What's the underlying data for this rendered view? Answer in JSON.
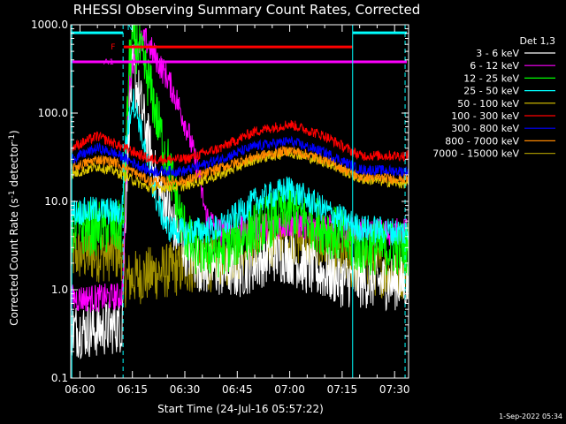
{
  "chart_data": {
    "type": "line",
    "title": "RHESSI Observing Summary Count Rates, Corrected",
    "xlabel": "Start Time (24-Jul-16 05:57:22)",
    "ylabel": "Corrected Count Rate (s⁻¹ detector⁻¹)",
    "ylabel_main": "Corrected Count Rate (s",
    "ylabel_sup1": "-1",
    "ylabel_mid": " detector",
    "ylabel_sup2": "-1",
    "ylabel_end": ")",
    "yscale": "log",
    "xlim": [
      "05:57:22",
      "07:34:00"
    ],
    "ylim": [
      0.1,
      1000
    ],
    "x_ticks": [
      "06:00",
      "06:15",
      "06:30",
      "06:45",
      "07:00",
      "07:15",
      "07:30"
    ],
    "y_ticks": [
      "1000.0",
      "100.0",
      "10.0",
      "1.0",
      "0.1"
    ],
    "legend_title": "Det 1,3",
    "legend_position": "right",
    "timestamp": "1-Sep-2022 05:34",
    "series": [
      {
        "name": "3 - 6 keV",
        "color": "#ffffff",
        "x": [
          "05:57:22",
          "06:05",
          "06:12",
          "06:12:30",
          "06:14",
          "06:15",
          "06:17",
          "06:20",
          "06:22",
          "06:25",
          "06:27",
          "06:30",
          "06:35",
          "06:45",
          "06:55",
          "07:00",
          "07:05",
          "07:15",
          "07:32"
        ],
        "y": [
          0.35,
          0.35,
          0.4,
          2.0,
          80,
          300,
          150,
          40,
          15,
          9,
          5,
          3,
          1.8,
          1.6,
          2.5,
          2.4,
          1.8,
          1.3,
          1.2
        ]
      },
      {
        "name": "6 - 12 keV",
        "color": "#ff00ff",
        "x": [
          "05:57:22",
          "06:05",
          "06:12",
          "06:12:30",
          "06:14",
          "06:16",
          "06:19",
          "06:22",
          "06:25",
          "06:28",
          "06:31",
          "06:34",
          "06:36",
          "06:40",
          "06:50",
          "07:00",
          "07:10",
          "07:20",
          "07:32"
        ],
        "y": [
          0.8,
          0.8,
          0.85,
          2.0,
          200,
          600,
          650,
          400,
          250,
          130,
          60,
          20,
          7,
          4.5,
          5,
          5.5,
          5,
          4.5,
          4.5
        ]
      },
      {
        "name": "12 - 25 keV",
        "color": "#00ff00",
        "x": [
          "05:57:22",
          "06:12",
          "06:12:30",
          "06:14",
          "06:15",
          "06:17",
          "06:20",
          "06:23",
          "06:26",
          "06:29",
          "06:32",
          "06:40",
          "06:50",
          "07:00",
          "07:10",
          "07:20",
          "07:32"
        ],
        "y": [
          5,
          5,
          6,
          300,
          700,
          500,
          200,
          60,
          20,
          6,
          3,
          2.8,
          5,
          8,
          5,
          3,
          3
        ]
      },
      {
        "name": "25 - 50 keV",
        "color": "#00ffff",
        "x": [
          "05:57:22",
          "06:05",
          "06:12",
          "06:13",
          "06:15",
          "06:17",
          "06:19",
          "06:22",
          "06:25",
          "06:30",
          "06:40",
          "06:50",
          "07:00",
          "07:10",
          "07:20",
          "07:32"
        ],
        "y": [
          7.5,
          8,
          7.5,
          40,
          150,
          80,
          30,
          10,
          5,
          4.5,
          5,
          10,
          14,
          8,
          5,
          4.5
        ]
      },
      {
        "name": "50 - 100 keV",
        "color": "#e0c800",
        "x": [
          "05:57:22",
          "06:05",
          "06:10",
          "06:20",
          "06:30",
          "06:40",
          "06:50",
          "07:00",
          "07:10",
          "07:20",
          "07:32"
        ],
        "y": [
          20,
          25,
          22,
          14,
          15,
          20,
          30,
          36,
          28,
          18,
          16
        ]
      },
      {
        "name": "100 - 300 keV",
        "color": "#ff0000",
        "x": [
          "05:57:22",
          "06:05",
          "06:10",
          "06:20",
          "06:30",
          "06:40",
          "06:50",
          "07:00",
          "07:10",
          "07:20",
          "07:32"
        ],
        "y": [
          40,
          55,
          45,
          30,
          30,
          40,
          62,
          75,
          55,
          33,
          33
        ]
      },
      {
        "name": "300 - 800 keV",
        "color": "#0000ff",
        "x": [
          "05:57:22",
          "06:05",
          "06:10",
          "06:20",
          "06:30",
          "06:40",
          "06:50",
          "07:00",
          "07:10",
          "07:20",
          "07:32"
        ],
        "y": [
          30,
          40,
          35,
          22,
          22,
          30,
          42,
          48,
          36,
          23,
          22
        ]
      },
      {
        "name": "800 - 7000 keV",
        "color": "#ff8800",
        "x": [
          "05:57:22",
          "06:05",
          "06:10",
          "06:20",
          "06:30",
          "06:40",
          "06:50",
          "07:00",
          "07:10",
          "07:20",
          "07:32"
        ],
        "y": [
          24,
          30,
          28,
          17,
          17,
          24,
          32,
          38,
          30,
          19,
          18
        ]
      },
      {
        "name": "7000 - 15000 keV",
        "color": "#a09000",
        "x": [
          "05:57:22",
          "06:05",
          "06:12",
          "06:13",
          "06:20",
          "06:30",
          "06:40",
          "06:50",
          "07:00",
          "07:10",
          "07:20",
          "07:32"
        ],
        "y": [
          2.5,
          2.5,
          2.6,
          1.3,
          1.5,
          1.8,
          2.0,
          3.5,
          4.0,
          3.0,
          1.8,
          1.6
        ]
      }
    ],
    "annotations": [
      {
        "label": "N",
        "color": "#00ffff",
        "kind": "top-bar",
        "segments": [
          [
            "05:57:22",
            "06:12:20"
          ],
          [
            "07:18:00",
            "07:33:30"
          ]
        ],
        "y": 810
      },
      {
        "label": "F",
        "color": "#ff0000",
        "kind": "bar",
        "segments": [
          [
            "06:12:30",
            "07:18:00"
          ]
        ],
        "y": 560
      },
      {
        "label": "A1",
        "color": "#ff00ff",
        "kind": "bar",
        "segments": [
          [
            "05:57:22",
            "07:33:30"
          ]
        ],
        "y": 380
      }
    ],
    "vertical_lines": [
      {
        "x": "05:57:40",
        "color": "#00ffff",
        "style": "solid"
      },
      {
        "x": "06:12:20",
        "color": "#00ffff",
        "style": "dashed"
      },
      {
        "x": "07:18:00",
        "color": "#00ffff",
        "style": "solid"
      },
      {
        "x": "07:33:00",
        "color": "#00ffff",
        "style": "dashed"
      }
    ]
  }
}
